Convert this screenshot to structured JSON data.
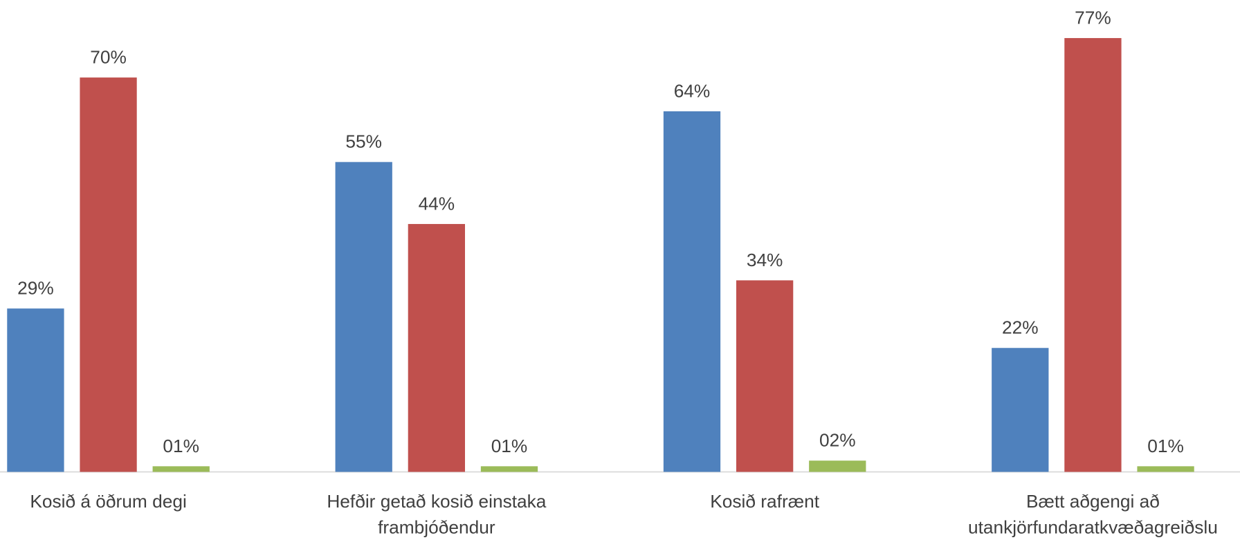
{
  "chart_data": {
    "type": "bar",
    "categories": [
      "Kosið á öðrum degi",
      "Hefðir getað kosið einstaka frambjóðendur",
      "Kosið rafrænt",
      "Bætt aðgengi að utankjörfundaratkvæðagreiðslu"
    ],
    "series": [
      {
        "color": "#4f81bd",
        "values": [
          29,
          55,
          64,
          22
        ],
        "value_labels": [
          "29%",
          "55%",
          "64%",
          "22%"
        ]
      },
      {
        "color": "#c0504d",
        "values": [
          70,
          44,
          34,
          77
        ],
        "value_labels": [
          "70%",
          "44%",
          "34%",
          "77%"
        ]
      },
      {
        "color": "#9bbb59",
        "values": [
          1,
          1,
          2,
          1
        ],
        "value_labels": [
          "01%",
          "01%",
          "02%",
          "01%"
        ]
      }
    ]
  }
}
